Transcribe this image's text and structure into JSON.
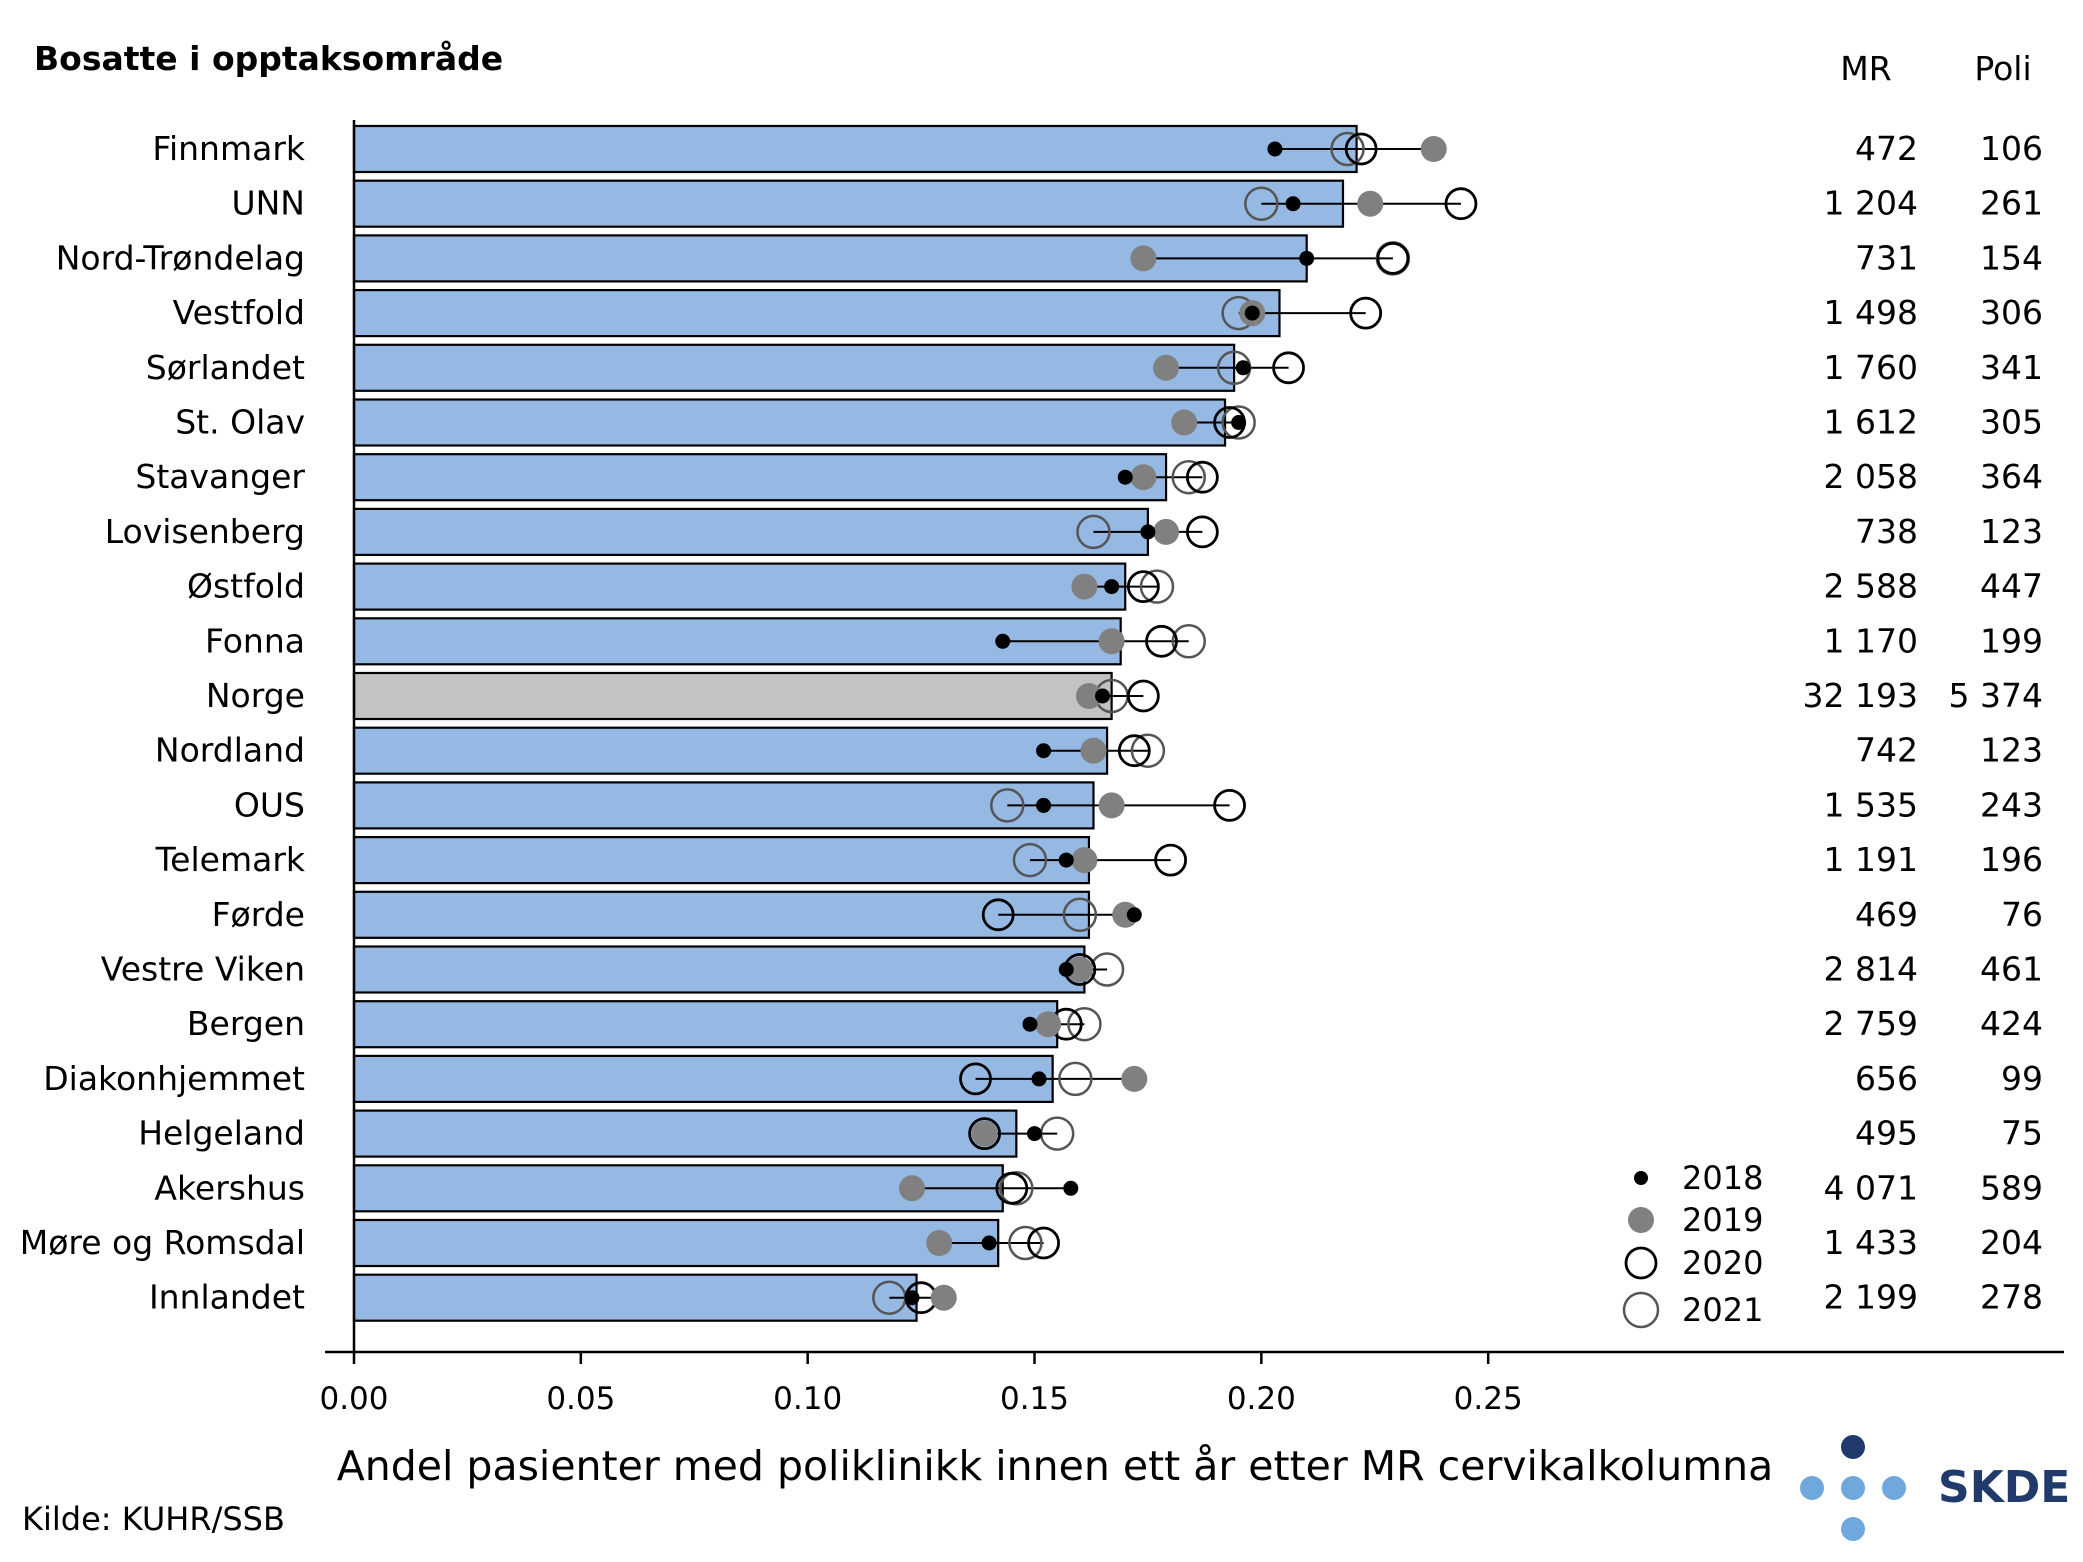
{
  "chart_data": {
    "type": "bar",
    "region_header": "Bosatte i opptaksområde",
    "table_headers": [
      "MR",
      "Poli"
    ],
    "xlabel": "Andel pasienter med poliklinikk innen ett år etter MR cervikalkolumna",
    "xlim": [
      0,
      0.3
    ],
    "xticks": [
      "0.00",
      "0.05",
      "0.10",
      "0.15",
      "0.20",
      "0.25"
    ],
    "xtick_values": [
      0,
      0.05,
      0.1,
      0.15,
      0.2,
      0.25
    ],
    "source": "Kilde: KUHR/SSB",
    "logo_text": "SKDE",
    "legend": {
      "placement": "bottom-right",
      "entries": [
        {
          "label": "2018",
          "marker": "small-black-dot"
        },
        {
          "label": "2019",
          "marker": "grey-dot"
        },
        {
          "label": "2020",
          "marker": "black-ring"
        },
        {
          "label": "2021",
          "marker": "grey-ring"
        }
      ]
    },
    "colors": {
      "bar": "#95b9e3",
      "bar_highlight": "#c3c3c3",
      "dot_2018": "#000000",
      "dot_2019": "#808080",
      "ring_2020": "#000000",
      "ring_2021": "#555555",
      "logo_dark": "#1f3a6b",
      "logo_light": "#6fa8dc"
    },
    "rows": [
      {
        "name": "Finnmark",
        "value": 0.221,
        "y2018": 0.203,
        "y2019": 0.238,
        "y2020": 0.222,
        "y2021": 0.219,
        "mr": "472",
        "poli": "106"
      },
      {
        "name": "UNN",
        "value": 0.218,
        "y2018": 0.207,
        "y2019": 0.224,
        "y2020": 0.244,
        "y2021": 0.2,
        "mr": "1 204",
        "poli": "261"
      },
      {
        "name": "Nord-Trøndelag",
        "value": 0.21,
        "y2018": 0.21,
        "y2019": 0.174,
        "y2020": 0.229,
        "y2021": 0.229,
        "mr": "731",
        "poli": "154"
      },
      {
        "name": "Vestfold",
        "value": 0.204,
        "y2018": 0.198,
        "y2019": 0.198,
        "y2020": 0.223,
        "y2021": 0.195,
        "mr": "1 498",
        "poli": "306"
      },
      {
        "name": "Sørlandet",
        "value": 0.194,
        "y2018": 0.196,
        "y2019": 0.179,
        "y2020": 0.206,
        "y2021": 0.194,
        "mr": "1 760",
        "poli": "341"
      },
      {
        "name": "St. Olav",
        "value": 0.192,
        "y2018": 0.195,
        "y2019": 0.183,
        "y2020": 0.193,
        "y2021": 0.195,
        "mr": "1 612",
        "poli": "305"
      },
      {
        "name": "Stavanger",
        "value": 0.179,
        "y2018": 0.17,
        "y2019": 0.174,
        "y2020": 0.187,
        "y2021": 0.184,
        "mr": "2 058",
        "poli": "364"
      },
      {
        "name": "Lovisenberg",
        "value": 0.175,
        "y2018": 0.175,
        "y2019": 0.179,
        "y2020": 0.187,
        "y2021": 0.163,
        "mr": "738",
        "poli": "123"
      },
      {
        "name": "Østfold",
        "value": 0.17,
        "y2018": 0.167,
        "y2019": 0.161,
        "y2020": 0.174,
        "y2021": 0.177,
        "mr": "2 588",
        "poli": "447"
      },
      {
        "name": "Fonna",
        "value": 0.169,
        "y2018": 0.143,
        "y2019": 0.167,
        "y2020": 0.178,
        "y2021": 0.184,
        "mr": "1 170",
        "poli": "199"
      },
      {
        "name": "Norge",
        "value": 0.167,
        "y2018": 0.165,
        "y2019": 0.162,
        "y2020": 0.174,
        "y2021": 0.167,
        "mr": "32 193",
        "poli": "5 374",
        "highlight": true
      },
      {
        "name": "Nordland",
        "value": 0.166,
        "y2018": 0.152,
        "y2019": 0.163,
        "y2020": 0.172,
        "y2021": 0.175,
        "mr": "742",
        "poli": "123"
      },
      {
        "name": "OUS",
        "value": 0.163,
        "y2018": 0.152,
        "y2019": 0.167,
        "y2020": 0.193,
        "y2021": 0.144,
        "mr": "1 535",
        "poli": "243"
      },
      {
        "name": "Telemark",
        "value": 0.162,
        "y2018": 0.157,
        "y2019": 0.161,
        "y2020": 0.18,
        "y2021": 0.149,
        "mr": "1 191",
        "poli": "196"
      },
      {
        "name": "Førde",
        "value": 0.162,
        "y2018": 0.172,
        "y2019": 0.17,
        "y2020": 0.142,
        "y2021": 0.16,
        "mr": "469",
        "poli": "76"
      },
      {
        "name": "Vestre Viken",
        "value": 0.161,
        "y2018": 0.157,
        "y2019": 0.16,
        "y2020": 0.16,
        "y2021": 0.166,
        "mr": "2 814",
        "poli": "461"
      },
      {
        "name": "Bergen",
        "value": 0.155,
        "y2018": 0.149,
        "y2019": 0.153,
        "y2020": 0.157,
        "y2021": 0.161,
        "mr": "2 759",
        "poli": "424"
      },
      {
        "name": "Diakonhjemmet",
        "value": 0.154,
        "y2018": 0.151,
        "y2019": 0.172,
        "y2020": 0.137,
        "y2021": 0.159,
        "mr": "656",
        "poli": "99"
      },
      {
        "name": "Helgeland",
        "value": 0.146,
        "y2018": 0.15,
        "y2019": 0.139,
        "y2020": 0.139,
        "y2021": 0.155,
        "mr": "495",
        "poli": "75"
      },
      {
        "name": "Akershus",
        "value": 0.143,
        "y2018": 0.158,
        "y2019": 0.123,
        "y2020": 0.145,
        "y2021": 0.146,
        "mr": "4 071",
        "poli": "589"
      },
      {
        "name": "Møre og Romsdal",
        "value": 0.142,
        "y2018": 0.14,
        "y2019": 0.129,
        "y2020": 0.152,
        "y2021": 0.148,
        "mr": "1 433",
        "poli": "204"
      },
      {
        "name": "Innlandet",
        "value": 0.124,
        "y2018": 0.123,
        "y2019": 0.13,
        "y2020": 0.125,
        "y2021": 0.118,
        "mr": "2 199",
        "poli": "278"
      }
    ]
  }
}
